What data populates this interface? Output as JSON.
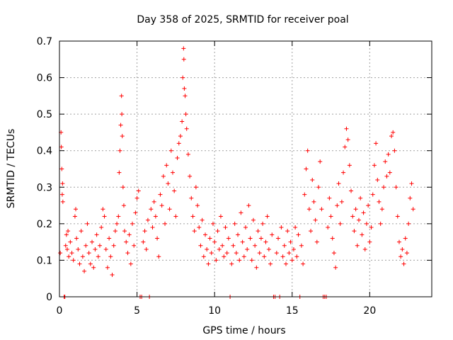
{
  "chart_data": {
    "type": "scatter",
    "title": "Day 358 of 2025, SRMTID for receiver poal",
    "xlabel": "GPS time / hours",
    "ylabel": "SRMTID / TECUs",
    "xlim": [
      0,
      24
    ],
    "ylim": [
      0,
      0.7
    ],
    "xticks": [
      0,
      5,
      10,
      15,
      20
    ],
    "xtick_labels": [
      "0",
      "5",
      "10",
      "15",
      "20"
    ],
    "yticks": [
      0,
      0.1,
      0.2,
      0.3,
      0.4,
      0.5,
      0.6,
      0.7
    ],
    "ytick_labels": [
      "0",
      "0.1",
      "0.2",
      "0.3",
      "0.4",
      "0.5",
      "0.6",
      "0.7"
    ],
    "grid": true,
    "marker": "plus",
    "color": "#ff0000",
    "series": [
      {
        "name": "SRMTID",
        "points": [
          [
            0.05,
            0.12
          ],
          [
            0.1,
            0.45
          ],
          [
            0.12,
            0.41
          ],
          [
            0.15,
            0.35
          ],
          [
            0.18,
            0.28
          ],
          [
            0.2,
            0.31
          ],
          [
            0.22,
            0.26
          ],
          [
            0.3,
            0.0
          ],
          [
            0.35,
            0.0
          ],
          [
            0.4,
            0.14
          ],
          [
            0.45,
            0.17
          ],
          [
            0.5,
            0.13
          ],
          [
            0.55,
            0.18
          ],
          [
            0.6,
            0.11
          ],
          [
            0.7,
            0.15
          ],
          [
            0.8,
            0.12
          ],
          [
            0.9,
            0.1
          ],
          [
            1.0,
            0.22
          ],
          [
            1.05,
            0.24
          ],
          [
            1.1,
            0.16
          ],
          [
            1.2,
            0.13
          ],
          [
            1.3,
            0.09
          ],
          [
            1.4,
            0.18
          ],
          [
            1.5,
            0.11
          ],
          [
            1.6,
            0.07
          ],
          [
            1.7,
            0.14
          ],
          [
            1.8,
            0.2
          ],
          [
            1.9,
            0.12
          ],
          [
            2.0,
            0.09
          ],
          [
            2.1,
            0.15
          ],
          [
            2.2,
            0.08
          ],
          [
            2.3,
            0.13
          ],
          [
            2.4,
            0.17
          ],
          [
            2.5,
            0.11
          ],
          [
            2.6,
            0.14
          ],
          [
            2.7,
            0.19
          ],
          [
            2.8,
            0.24
          ],
          [
            2.9,
            0.22
          ],
          [
            3.0,
            0.13
          ],
          [
            3.1,
            0.08
          ],
          [
            3.2,
            0.16
          ],
          [
            3.3,
            0.11
          ],
          [
            3.4,
            0.06
          ],
          [
            3.5,
            0.14
          ],
          [
            3.6,
            0.18
          ],
          [
            3.7,
            0.2
          ],
          [
            3.8,
            0.22
          ],
          [
            3.85,
            0.34
          ],
          [
            3.9,
            0.4
          ],
          [
            3.95,
            0.47
          ],
          [
            4.0,
            0.55
          ],
          [
            4.02,
            0.5
          ],
          [
            4.05,
            0.44
          ],
          [
            4.1,
            0.3
          ],
          [
            4.15,
            0.25
          ],
          [
            4.2,
            0.18
          ],
          [
            4.3,
            0.15
          ],
          [
            4.4,
            0.12
          ],
          [
            4.5,
            0.17
          ],
          [
            4.6,
            0.09
          ],
          [
            4.7,
            0.2
          ],
          [
            4.8,
            0.14
          ],
          [
            4.9,
            0.23
          ],
          [
            5.0,
            0.27
          ],
          [
            5.1,
            0.29
          ],
          [
            5.2,
            0.0
          ],
          [
            5.3,
            0.0
          ],
          [
            5.4,
            0.15
          ],
          [
            5.5,
            0.18
          ],
          [
            5.6,
            0.13
          ],
          [
            5.7,
            0.21
          ],
          [
            5.8,
            0.0
          ],
          [
            5.9,
            0.24
          ],
          [
            6.0,
            0.19
          ],
          [
            6.1,
            0.26
          ],
          [
            6.2,
            0.22
          ],
          [
            6.3,
            0.16
          ],
          [
            6.4,
            0.11
          ],
          [
            6.5,
            0.28
          ],
          [
            6.6,
            0.25
          ],
          [
            6.7,
            0.33
          ],
          [
            6.8,
            0.2
          ],
          [
            6.9,
            0.36
          ],
          [
            7.0,
            0.31
          ],
          [
            7.1,
            0.24
          ],
          [
            7.2,
            0.4
          ],
          [
            7.3,
            0.34
          ],
          [
            7.4,
            0.29
          ],
          [
            7.5,
            0.22
          ],
          [
            7.6,
            0.38
          ],
          [
            7.7,
            0.42
          ],
          [
            7.8,
            0.44
          ],
          [
            7.9,
            0.48
          ],
          [
            7.95,
            0.6
          ],
          [
            8.0,
            0.68
          ],
          [
            8.02,
            0.65
          ],
          [
            8.05,
            0.57
          ],
          [
            8.1,
            0.55
          ],
          [
            8.15,
            0.5
          ],
          [
            8.2,
            0.46
          ],
          [
            8.3,
            0.39
          ],
          [
            8.4,
            0.33
          ],
          [
            8.5,
            0.27
          ],
          [
            8.6,
            0.22
          ],
          [
            8.7,
            0.18
          ],
          [
            8.8,
            0.3
          ],
          [
            8.9,
            0.25
          ],
          [
            9.0,
            0.19
          ],
          [
            9.1,
            0.14
          ],
          [
            9.2,
            0.21
          ],
          [
            9.3,
            0.11
          ],
          [
            9.4,
            0.17
          ],
          [
            9.5,
            0.13
          ],
          [
            9.6,
            0.09
          ],
          [
            9.7,
            0.16
          ],
          [
            9.8,
            0.12
          ],
          [
            9.9,
            0.2
          ],
          [
            10.0,
            0.15
          ],
          [
            10.1,
            0.1
          ],
          [
            10.2,
            0.18
          ],
          [
            10.3,
            0.13
          ],
          [
            10.4,
            0.22
          ],
          [
            10.5,
            0.14
          ],
          [
            10.6,
            0.11
          ],
          [
            10.7,
            0.19
          ],
          [
            10.8,
            0.12
          ],
          [
            10.9,
            0.16
          ],
          [
            11.0,
            0.0
          ],
          [
            11.1,
            0.09
          ],
          [
            11.2,
            0.14
          ],
          [
            11.3,
            0.2
          ],
          [
            11.4,
            0.12
          ],
          [
            11.5,
            0.17
          ],
          [
            11.6,
            0.1
          ],
          [
            11.7,
            0.23
          ],
          [
            11.8,
            0.15
          ],
          [
            11.9,
            0.11
          ],
          [
            12.0,
            0.19
          ],
          [
            12.1,
            0.13
          ],
          [
            12.2,
            0.25
          ],
          [
            12.3,
            0.16
          ],
          [
            12.4,
            0.1
          ],
          [
            12.5,
            0.21
          ],
          [
            12.6,
            0.14
          ],
          [
            12.7,
            0.08
          ],
          [
            12.8,
            0.18
          ],
          [
            12.9,
            0.12
          ],
          [
            13.0,
            0.16
          ],
          [
            13.1,
            0.2
          ],
          [
            13.2,
            0.11
          ],
          [
            13.3,
            0.15
          ],
          [
            13.4,
            0.22
          ],
          [
            13.5,
            0.13
          ],
          [
            13.6,
            0.09
          ],
          [
            13.7,
            0.17
          ],
          [
            13.8,
            0.0
          ],
          [
            13.9,
            0.0
          ],
          [
            14.0,
            0.12
          ],
          [
            14.1,
            0.16
          ],
          [
            14.2,
            0.0
          ],
          [
            14.3,
            0.19
          ],
          [
            14.4,
            0.11
          ],
          [
            14.5,
            0.14
          ],
          [
            14.6,
            0.09
          ],
          [
            14.7,
            0.18
          ],
          [
            14.8,
            0.12
          ],
          [
            14.9,
            0.15
          ],
          [
            15.0,
            0.1
          ],
          [
            15.1,
            0.13
          ],
          [
            15.2,
            0.19
          ],
          [
            15.3,
            0.11
          ],
          [
            15.4,
            0.17
          ],
          [
            15.5,
            0.0
          ],
          [
            15.6,
            0.14
          ],
          [
            15.7,
            0.09
          ],
          [
            15.8,
            0.28
          ],
          [
            15.9,
            0.35
          ],
          [
            16.0,
            0.4
          ],
          [
            16.1,
            0.24
          ],
          [
            16.2,
            0.18
          ],
          [
            16.3,
            0.32
          ],
          [
            16.4,
            0.26
          ],
          [
            16.5,
            0.21
          ],
          [
            16.6,
            0.15
          ],
          [
            16.7,
            0.3
          ],
          [
            16.8,
            0.37
          ],
          [
            16.9,
            0.24
          ],
          [
            17.0,
            0.0
          ],
          [
            17.1,
            0.0
          ],
          [
            17.2,
            0.0
          ],
          [
            17.3,
            0.19
          ],
          [
            17.4,
            0.27
          ],
          [
            17.5,
            0.22
          ],
          [
            17.6,
            0.16
          ],
          [
            17.7,
            0.12
          ],
          [
            17.8,
            0.08
          ],
          [
            17.9,
            0.25
          ],
          [
            18.0,
            0.31
          ],
          [
            18.1,
            0.2
          ],
          [
            18.2,
            0.26
          ],
          [
            18.3,
            0.34
          ],
          [
            18.4,
            0.41
          ],
          [
            18.5,
            0.46
          ],
          [
            18.6,
            0.43
          ],
          [
            18.7,
            0.36
          ],
          [
            18.8,
            0.29
          ],
          [
            18.9,
            0.22
          ],
          [
            19.0,
            0.18
          ],
          [
            19.1,
            0.24
          ],
          [
            19.2,
            0.14
          ],
          [
            19.3,
            0.21
          ],
          [
            19.4,
            0.27
          ],
          [
            19.5,
            0.17
          ],
          [
            19.6,
            0.23
          ],
          [
            19.7,
            0.13
          ],
          [
            19.8,
            0.2
          ],
          [
            19.9,
            0.25
          ],
          [
            20.0,
            0.15
          ],
          [
            20.1,
            0.19
          ],
          [
            20.2,
            0.28
          ],
          [
            20.3,
            0.36
          ],
          [
            20.4,
            0.42
          ],
          [
            20.5,
            0.32
          ],
          [
            20.6,
            0.26
          ],
          [
            20.7,
            0.2
          ],
          [
            20.8,
            0.24
          ],
          [
            20.9,
            0.3
          ],
          [
            21.0,
            0.37
          ],
          [
            21.1,
            0.33
          ],
          [
            21.2,
            0.39
          ],
          [
            21.3,
            0.34
          ],
          [
            21.4,
            0.44
          ],
          [
            21.5,
            0.45
          ],
          [
            21.6,
            0.4
          ],
          [
            21.7,
            0.3
          ],
          [
            21.8,
            0.22
          ],
          [
            21.9,
            0.15
          ],
          [
            22.0,
            0.11
          ],
          [
            22.1,
            0.13
          ],
          [
            22.2,
            0.09
          ],
          [
            22.3,
            0.16
          ],
          [
            22.4,
            0.12
          ],
          [
            22.5,
            0.2
          ],
          [
            22.6,
            0.27
          ],
          [
            22.7,
            0.31
          ],
          [
            22.8,
            0.24
          ]
        ]
      }
    ]
  }
}
